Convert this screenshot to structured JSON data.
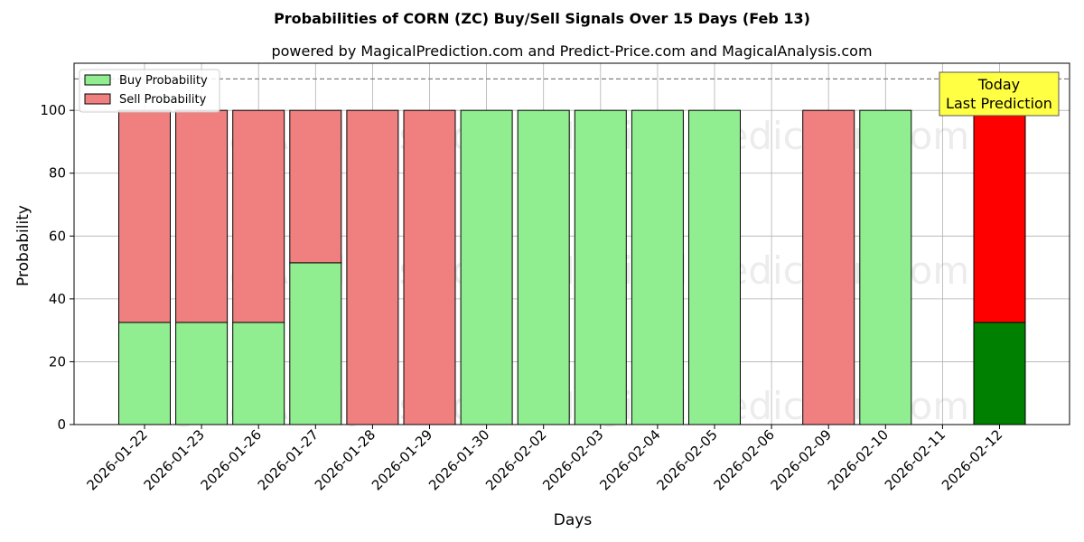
{
  "chart_data": {
    "type": "bar",
    "stacked": true,
    "title": "Probabilities of CORN (ZC) Buy/Sell Signals Over 15 Days (Feb 13)",
    "subtitle": "powered by MagicalPrediction.com and Predict-Price.com and MagicalAnalysis.com",
    "xlabel": "Days",
    "ylabel": "Probability",
    "ylim": [
      0,
      115
    ],
    "yticks": [
      0,
      20,
      40,
      60,
      80,
      100
    ],
    "grid": true,
    "legend_position": "top-left",
    "reference_line": 110,
    "categories": [
      "2026-01-22",
      "2026-01-23",
      "2026-01-26",
      "2026-01-27",
      "2026-01-28",
      "2026-01-29",
      "2026-01-30",
      "2026-02-02",
      "2026-02-03",
      "2026-02-04",
      "2026-02-05",
      "2026-02-06",
      "2026-02-09",
      "2026-02-10",
      "2026-02-11",
      "2026-02-12"
    ],
    "series": [
      {
        "name": "Buy Probability",
        "color": "#90ee90",
        "values": [
          32.5,
          32.5,
          32.5,
          51.5,
          0,
          0,
          100,
          100,
          100,
          100,
          100,
          null,
          0,
          100,
          null,
          32.5
        ]
      },
      {
        "name": "Sell Probability",
        "color": "#f08080",
        "values": [
          67.5,
          67.5,
          67.5,
          48.5,
          100,
          100,
          0,
          0,
          0,
          0,
          0,
          null,
          100,
          0,
          null,
          67.5
        ]
      }
    ],
    "highlight": {
      "category": "2026-02-12",
      "buy_color": "#008000",
      "sell_color": "#ff0000"
    },
    "annotation": {
      "lines": [
        "Today",
        "Last Prediction"
      ],
      "background": "#ffff44"
    },
    "watermarks": [
      "MagicalAnalysis.com",
      "MagicalPrediction.com"
    ]
  }
}
